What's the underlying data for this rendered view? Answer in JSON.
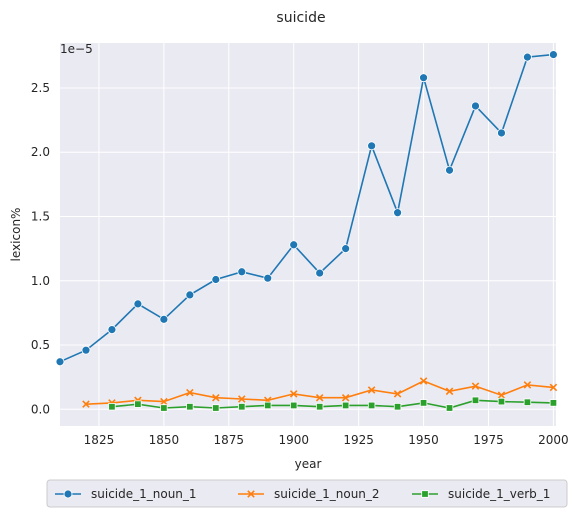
{
  "chart_data": {
    "type": "line",
    "title": "suicide",
    "xlabel": "year",
    "ylabel": "lexicon%",
    "y_multiplier": "1e−5",
    "xlim": [
      1810,
      2001
    ],
    "ylim": [
      -0.13,
      2.85
    ],
    "x_ticks": [
      1825,
      1850,
      1875,
      1900,
      1925,
      1950,
      1975,
      2000
    ],
    "y_ticks": [
      0.0,
      0.5,
      1.0,
      1.5,
      2.0,
      2.5
    ],
    "y_tick_labels": [
      "0.0",
      "0.5",
      "1.0",
      "1.5",
      "2.0",
      "2.5"
    ],
    "grid": true,
    "legend_position": "bottom-center",
    "series": [
      {
        "name": "suicide_1_noun_1",
        "color": "#1f77b4",
        "marker": "circle",
        "x": [
          1810,
          1820,
          1830,
          1840,
          1850,
          1860,
          1870,
          1880,
          1890,
          1900,
          1910,
          1920,
          1930,
          1940,
          1950,
          1960,
          1970,
          1980,
          1990,
          2000
        ],
        "y": [
          0.37,
          0.46,
          0.62,
          0.82,
          0.7,
          0.89,
          1.01,
          1.07,
          1.02,
          1.28,
          1.06,
          1.25,
          2.05,
          1.53,
          2.58,
          1.86,
          2.36,
          2.15,
          2.74,
          2.76
        ]
      },
      {
        "name": "suicide_1_noun_2",
        "color": "#ff7f0e",
        "marker": "x",
        "x": [
          1820,
          1830,
          1840,
          1850,
          1860,
          1870,
          1880,
          1890,
          1900,
          1910,
          1920,
          1930,
          1940,
          1950,
          1960,
          1970,
          1980,
          1990,
          2000
        ],
        "y": [
          0.04,
          0.05,
          0.07,
          0.06,
          0.13,
          0.09,
          0.08,
          0.07,
          0.12,
          0.09,
          0.09,
          0.15,
          0.12,
          0.22,
          0.14,
          0.18,
          0.11,
          0.19,
          0.17
        ]
      },
      {
        "name": "suicide_1_verb_1",
        "color": "#2ca02c",
        "marker": "square",
        "x": [
          1830,
          1840,
          1850,
          1860,
          1870,
          1880,
          1890,
          1900,
          1910,
          1920,
          1930,
          1940,
          1950,
          1960,
          1970,
          1980,
          1990,
          2000
        ],
        "y": [
          0.02,
          0.04,
          0.01,
          0.02,
          0.01,
          0.02,
          0.03,
          0.03,
          0.02,
          0.03,
          0.03,
          0.02,
          0.05,
          0.01,
          0.07,
          0.06,
          0.055,
          0.05
        ]
      }
    ]
  }
}
